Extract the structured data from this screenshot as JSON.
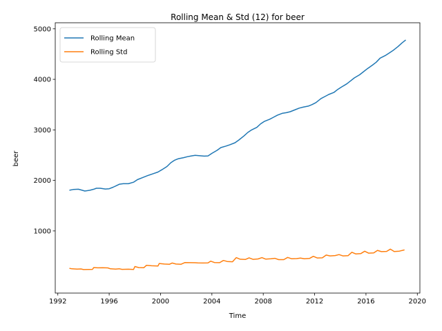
{
  "chart_data": {
    "type": "line",
    "title": "Rolling Mean & Std (12) for beer",
    "xlabel": "Time",
    "ylabel": "beer",
    "xlim": [
      1991.8,
      2020.2
    ],
    "ylim": [
      0,
      5000
    ],
    "xticks": [
      1992,
      1996,
      2000,
      2004,
      2008,
      2012,
      2016,
      2020
    ],
    "yticks": [
      1000,
      2000,
      3000,
      4000,
      5000
    ],
    "grid": false,
    "legend": "upper left",
    "series": [
      {
        "name": "Rolling Mean",
        "color": "#1f77b4",
        "points": [
          [
            1992.9,
            1805
          ],
          [
            1993.2,
            1820
          ],
          [
            1993.6,
            1825
          ],
          [
            1993.9,
            1805
          ],
          [
            1994.1,
            1790
          ],
          [
            1994.5,
            1805
          ],
          [
            1994.8,
            1825
          ],
          [
            1995.0,
            1845
          ],
          [
            1995.3,
            1845
          ],
          [
            1995.7,
            1830
          ],
          [
            1996.0,
            1835
          ],
          [
            1996.3,
            1865
          ],
          [
            1996.6,
            1900
          ],
          [
            1996.8,
            1925
          ],
          [
            1997.1,
            1935
          ],
          [
            1997.5,
            1935
          ],
          [
            1997.9,
            1965
          ],
          [
            1998.2,
            2015
          ],
          [
            1998.6,
            2055
          ],
          [
            1999.0,
            2095
          ],
          [
            1999.4,
            2130
          ],
          [
            1999.8,
            2165
          ],
          [
            2000.1,
            2210
          ],
          [
            2000.5,
            2275
          ],
          [
            2000.8,
            2350
          ],
          [
            2001.1,
            2400
          ],
          [
            2001.4,
            2430
          ],
          [
            2001.8,
            2450
          ],
          [
            2002.1,
            2470
          ],
          [
            2002.4,
            2485
          ],
          [
            2002.7,
            2495
          ],
          [
            2003.0,
            2490
          ],
          [
            2003.4,
            2480
          ],
          [
            2003.7,
            2485
          ],
          [
            2004.0,
            2535
          ],
          [
            2004.4,
            2595
          ],
          [
            2004.7,
            2650
          ],
          [
            2005.1,
            2680
          ],
          [
            2005.4,
            2705
          ],
          [
            2005.8,
            2745
          ],
          [
            2006.1,
            2800
          ],
          [
            2006.5,
            2880
          ],
          [
            2006.8,
            2950
          ],
          [
            2007.1,
            3000
          ],
          [
            2007.5,
            3050
          ],
          [
            2007.8,
            3120
          ],
          [
            2008.1,
            3170
          ],
          [
            2008.5,
            3210
          ],
          [
            2008.8,
            3250
          ],
          [
            2009.1,
            3290
          ],
          [
            2009.5,
            3330
          ],
          [
            2009.8,
            3340
          ],
          [
            2010.1,
            3360
          ],
          [
            2010.5,
            3400
          ],
          [
            2010.8,
            3430
          ],
          [
            2011.1,
            3450
          ],
          [
            2011.5,
            3470
          ],
          [
            2011.8,
            3500
          ],
          [
            2012.1,
            3540
          ],
          [
            2012.5,
            3620
          ],
          [
            2012.8,
            3660
          ],
          [
            2013.1,
            3700
          ],
          [
            2013.5,
            3740
          ],
          [
            2013.8,
            3800
          ],
          [
            2014.1,
            3850
          ],
          [
            2014.5,
            3910
          ],
          [
            2014.8,
            3970
          ],
          [
            2015.1,
            4030
          ],
          [
            2015.5,
            4090
          ],
          [
            2015.8,
            4150
          ],
          [
            2016.1,
            4210
          ],
          [
            2016.5,
            4280
          ],
          [
            2016.8,
            4340
          ],
          [
            2017.1,
            4420
          ],
          [
            2017.5,
            4470
          ],
          [
            2017.8,
            4520
          ],
          [
            2018.1,
            4570
          ],
          [
            2018.5,
            4650
          ],
          [
            2018.8,
            4720
          ],
          [
            2019.1,
            4780
          ]
        ]
      },
      {
        "name": "Rolling Std",
        "color": "#ff7f0e",
        "points": [
          [
            1992.9,
            260
          ],
          [
            1993.1,
            250
          ],
          [
            1993.5,
            245
          ],
          [
            1993.8,
            248
          ],
          [
            1994.0,
            235
          ],
          [
            1994.4,
            238
          ],
          [
            1994.7,
            240
          ],
          [
            1994.8,
            275
          ],
          [
            1995.1,
            270
          ],
          [
            1995.5,
            272
          ],
          [
            1995.9,
            268
          ],
          [
            1996.1,
            250
          ],
          [
            1996.5,
            245
          ],
          [
            1996.8,
            250
          ],
          [
            1997.0,
            240
          ],
          [
            1997.5,
            242
          ],
          [
            1997.9,
            238
          ],
          [
            1998.0,
            295
          ],
          [
            1998.3,
            275
          ],
          [
            1998.7,
            272
          ],
          [
            1998.9,
            318
          ],
          [
            1999.3,
            310
          ],
          [
            1999.8,
            305
          ],
          [
            1999.9,
            355
          ],
          [
            2000.3,
            345
          ],
          [
            2000.7,
            340
          ],
          [
            2000.9,
            365
          ],
          [
            2001.2,
            345
          ],
          [
            2001.6,
            340
          ],
          [
            2001.9,
            375
          ],
          [
            2002.3,
            372
          ],
          [
            2002.7,
            370
          ],
          [
            2002.9,
            368
          ],
          [
            2003.3,
            365
          ],
          [
            2003.7,
            368
          ],
          [
            2003.9,
            402
          ],
          [
            2004.2,
            375
          ],
          [
            2004.6,
            372
          ],
          [
            2004.9,
            415
          ],
          [
            2005.2,
            395
          ],
          [
            2005.6,
            390
          ],
          [
            2005.9,
            472
          ],
          [
            2006.2,
            440
          ],
          [
            2006.6,
            435
          ],
          [
            2006.9,
            468
          ],
          [
            2007.2,
            438
          ],
          [
            2007.6,
            445
          ],
          [
            2007.9,
            472
          ],
          [
            2008.2,
            442
          ],
          [
            2008.6,
            448
          ],
          [
            2008.9,
            458
          ],
          [
            2009.2,
            432
          ],
          [
            2009.6,
            432
          ],
          [
            2009.9,
            475
          ],
          [
            2010.2,
            450
          ],
          [
            2010.6,
            452
          ],
          [
            2010.9,
            462
          ],
          [
            2011.2,
            450
          ],
          [
            2011.6,
            455
          ],
          [
            2011.9,
            498
          ],
          [
            2012.2,
            465
          ],
          [
            2012.6,
            468
          ],
          [
            2012.9,
            522
          ],
          [
            2013.2,
            505
          ],
          [
            2013.6,
            512
          ],
          [
            2013.9,
            532
          ],
          [
            2014.2,
            505
          ],
          [
            2014.6,
            510
          ],
          [
            2014.9,
            578
          ],
          [
            2015.2,
            545
          ],
          [
            2015.6,
            552
          ],
          [
            2015.9,
            598
          ],
          [
            2016.2,
            560
          ],
          [
            2016.6,
            565
          ],
          [
            2016.9,
            615
          ],
          [
            2017.2,
            590
          ],
          [
            2017.6,
            595
          ],
          [
            2017.9,
            640
          ],
          [
            2018.2,
            592
          ],
          [
            2018.6,
            600
          ],
          [
            2019.0,
            625
          ]
        ]
      }
    ]
  }
}
